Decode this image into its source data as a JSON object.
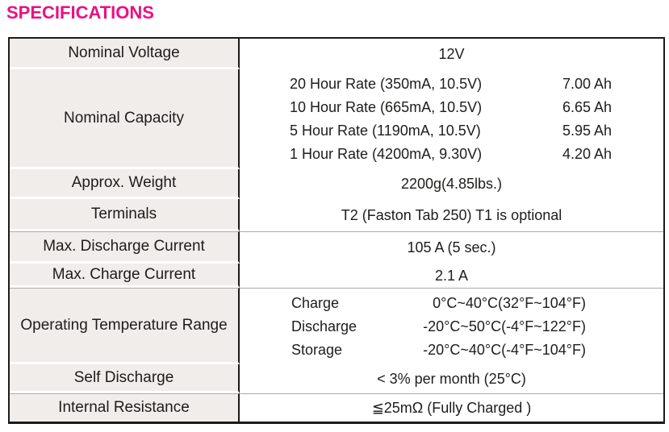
{
  "title": "SPECIFICATIONS",
  "colors": {
    "title": "#ea1183",
    "label_background": "#f0edea",
    "border_dark": "#1b1b1b",
    "separator_gray": "#ababab",
    "text": "#1d1d1b"
  },
  "table": {
    "rows": [
      {
        "label": "Nominal Voltage",
        "value": "12V"
      },
      {
        "label": "Nominal Capacity",
        "lines": [
          {
            "desc": "20 Hour Rate (350mA, 10.5V)",
            "value": "7.00 Ah"
          },
          {
            "desc": "10 Hour Rate (665mA, 10.5V)",
            "value": "6.65 Ah"
          },
          {
            "desc": "5 Hour Rate (1190mA, 10.5V)",
            "value": "5.95 Ah"
          },
          {
            "desc": "1 Hour Rate (4200mA, 9.30V)",
            "value": "4.20 Ah"
          }
        ]
      },
      {
        "label": "Approx. Weight",
        "value": "2200g(4.85lbs.)"
      },
      {
        "label": "Terminals",
        "value": "T2 (Faston Tab 250) T1 is optional"
      },
      {
        "label": "Max. Discharge Current",
        "value": "105 A (5 sec.)"
      },
      {
        "label": "Max. Charge Current",
        "value": "2.1 A"
      },
      {
        "label": "Operating Temperature Range",
        "lines": [
          {
            "name": "Charge",
            "value": "0°C~40°C(32°F~104°F)"
          },
          {
            "name": "Discharge",
            "value": "-20°C~50°C(-4°F~122°F)"
          },
          {
            "name": "Storage",
            "value": "-20°C~40°C(-4°F~104°F)"
          }
        ]
      },
      {
        "label": "Self Discharge",
        "value": "< 3% per month (25°C)"
      },
      {
        "label": "Internal Resistance",
        "value": "≦25mΩ (Fully Charged )"
      }
    ]
  }
}
